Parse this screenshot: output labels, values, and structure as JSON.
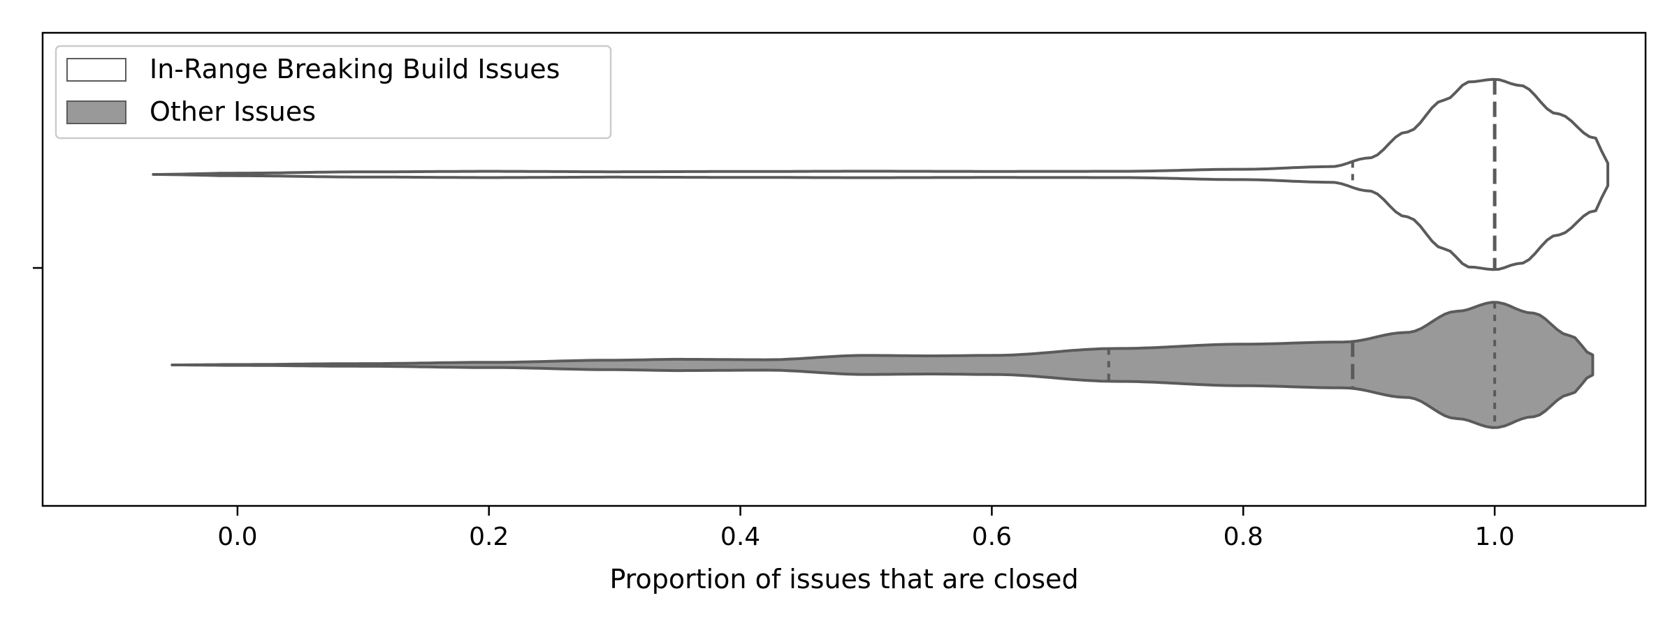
{
  "chart_data": {
    "type": "violin",
    "orientation": "horizontal",
    "xlabel": "Proportion of issues that are closed",
    "ylabel": "",
    "xlim": [
      -0.155,
      1.12
    ],
    "xticks": [
      "0.0",
      "0.2",
      "0.4",
      "0.6",
      "0.8",
      "1.0"
    ],
    "grid": false,
    "legend": {
      "placement": "top-left"
    },
    "colors": {
      "outline": "#5b5b5b",
      "other_fill": "#999999",
      "in_range_fill": "#ffffff"
    },
    "series": [
      {
        "name": "In-Range Breaking Build Issues",
        "fill": "#ffffff",
        "range": [
          -0.067,
          1.09
        ],
        "quartiles": [
          0.887,
          1.0,
          1.0
        ],
        "density": [
          [
            -0.067,
            0.0
          ],
          [
            0.0,
            0.3
          ],
          [
            0.1,
            0.6
          ],
          [
            0.2,
            0.72
          ],
          [
            0.3,
            0.62
          ],
          [
            0.4,
            0.68
          ],
          [
            0.5,
            0.74
          ],
          [
            0.6,
            0.7
          ],
          [
            0.7,
            0.72
          ],
          [
            0.8,
            1.2
          ],
          [
            0.87,
            1.8
          ],
          [
            0.9,
            3.8
          ],
          [
            0.93,
            9.8
          ],
          [
            0.96,
            17.2
          ],
          [
            0.98,
            21.4
          ],
          [
            1.0,
            22.0
          ],
          [
            1.02,
            20.6
          ],
          [
            1.05,
            14.0
          ],
          [
            1.08,
            8.4
          ],
          [
            1.09,
            2.6
          ]
        ]
      },
      {
        "name": "Other Issues",
        "fill": "#999999",
        "range": [
          -0.052,
          1.078
        ],
        "quartiles": [
          0.693,
          0.887,
          1.0
        ],
        "density": [
          [
            -0.052,
            0.0
          ],
          [
            0.0,
            0.1
          ],
          [
            0.1,
            0.3
          ],
          [
            0.2,
            0.6
          ],
          [
            0.3,
            1.1
          ],
          [
            0.35,
            1.3
          ],
          [
            0.42,
            1.2
          ],
          [
            0.5,
            2.2
          ],
          [
            0.55,
            2.1
          ],
          [
            0.6,
            2.2
          ],
          [
            0.7,
            3.8
          ],
          [
            0.8,
            4.8
          ],
          [
            0.88,
            5.3
          ],
          [
            0.93,
            7.5
          ],
          [
            0.97,
            12.4
          ],
          [
            1.0,
            14.5
          ],
          [
            1.03,
            12.0
          ],
          [
            1.06,
            6.8
          ],
          [
            1.078,
            2.3
          ]
        ]
      }
    ]
  }
}
